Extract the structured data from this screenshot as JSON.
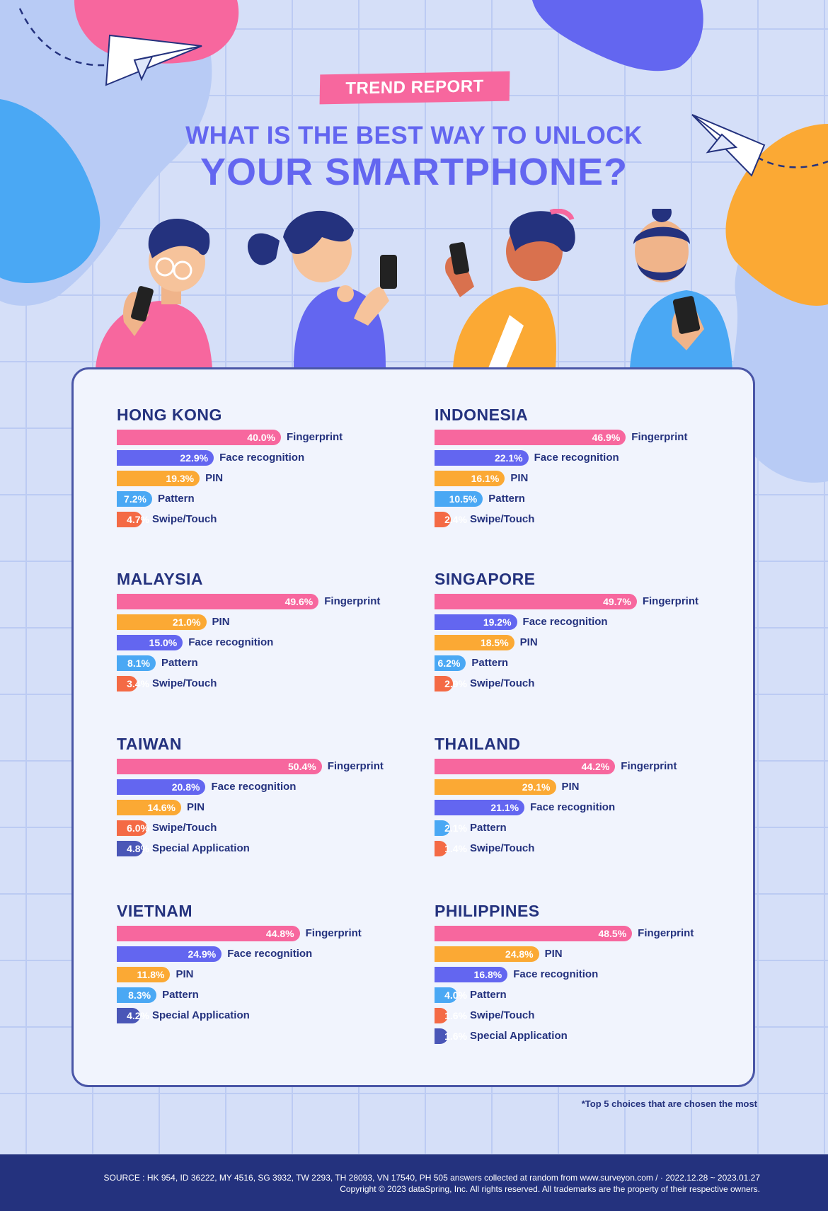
{
  "header": {
    "badge": "TREND REPORT",
    "title_line1": "WHAT IS THE BEST WAY TO UNLOCK",
    "title_line2": "YOUR SMARTPHONE?"
  },
  "colors": {
    "Fingerprint": "#f7679e",
    "Face recognition": "#6366f0",
    "PIN": "#fba934",
    "Pattern": "#4aa8f4",
    "Swipe/Touch": "#f46a45",
    "Special Application": "#4a56b7"
  },
  "chart_data": [
    {
      "type": "bar",
      "title": "HONG KONG",
      "categories": [
        "Fingerprint",
        "Face recognition",
        "PIN",
        "Pattern",
        "Swipe/Touch"
      ],
      "values": [
        40.0,
        22.9,
        19.3,
        7.2,
        4.7
      ],
      "labels": [
        "40.0%",
        "22.9%",
        "19.3%",
        "7.2%",
        "4.7%"
      ]
    },
    {
      "type": "bar",
      "title": "INDONESIA",
      "categories": [
        "Fingerprint",
        "Face recognition",
        "PIN",
        "Pattern",
        "Swipe/Touch"
      ],
      "values": [
        46.9,
        22.1,
        16.1,
        10.5,
        2.4
      ],
      "labels": [
        "46.9%",
        "22.1%",
        "16.1%",
        "10.5%",
        "2.4%"
      ]
    },
    {
      "type": "bar",
      "title": "MALAYSIA",
      "categories": [
        "Fingerprint",
        "PIN",
        "Face recognition",
        "Pattern",
        "Swipe/Touch"
      ],
      "values": [
        49.6,
        21.0,
        15.0,
        8.1,
        3.4
      ],
      "labels": [
        "49.6%",
        "21.0%",
        "15.0%",
        "8.1%",
        "3.4%"
      ]
    },
    {
      "type": "bar",
      "title": "SINGAPORE",
      "categories": [
        "Fingerprint",
        "Face recognition",
        "PIN",
        "Pattern",
        "Swipe/Touch"
      ],
      "values": [
        49.7,
        19.2,
        18.5,
        6.2,
        2.9
      ],
      "labels": [
        "49.7%",
        "19.2%",
        "18.5%",
        "6.2%",
        "2.9%"
      ]
    },
    {
      "type": "bar",
      "title": "TAIWAN",
      "categories": [
        "Fingerprint",
        "Face recognition",
        "PIN",
        "Swipe/Touch",
        "Special Application"
      ],
      "values": [
        50.4,
        20.8,
        14.6,
        6.0,
        4.8
      ],
      "labels": [
        "50.4%",
        "20.8%",
        "14.6%",
        "6.0%",
        "4.8%"
      ]
    },
    {
      "type": "bar",
      "title": "THAILAND",
      "categories": [
        "Fingerprint",
        "PIN",
        "Face recognition",
        "Pattern",
        "Swipe/Touch"
      ],
      "values": [
        44.2,
        29.1,
        21.1,
        2.1,
        1.4
      ],
      "labels": [
        "44.2%",
        "29.1%",
        "21.1%",
        "2.1%",
        "1.4%"
      ]
    },
    {
      "type": "bar",
      "title": "VIETNAM",
      "categories": [
        "Fingerprint",
        "Face recognition",
        "PIN",
        "Pattern",
        "Special Application"
      ],
      "values": [
        44.8,
        24.9,
        11.8,
        8.3,
        4.2
      ],
      "labels": [
        "44.8%",
        "24.9%",
        "11.8%",
        "8.3%",
        "4.2%"
      ]
    },
    {
      "type": "bar",
      "title": "PHILIPPINES",
      "categories": [
        "Fingerprint",
        "PIN",
        "Face recognition",
        "Pattern",
        "Swipe/Touch",
        "Special Application"
      ],
      "values": [
        48.5,
        24.8,
        16.8,
        4.0,
        1.6,
        1.6
      ],
      "labels": [
        "48.5%",
        "24.8%",
        "16.8%",
        "4.0%",
        "1.6%",
        "1.6%"
      ]
    }
  ],
  "note": "*Top 5 choices that are chosen the most",
  "footer": {
    "source": "SOURCE : HK 954, ID 36222, MY 4516, SG 3932, TW 2293, TH 28093, VN 17540, PH 505 answers collected at random from www.surveyon.com / · 2022.12.28 ~ 2023.01.27",
    "copyright": "Copyright © 2023 dataSpring, Inc. All rights reserved. All trademarks are the property of their respective owners."
  }
}
